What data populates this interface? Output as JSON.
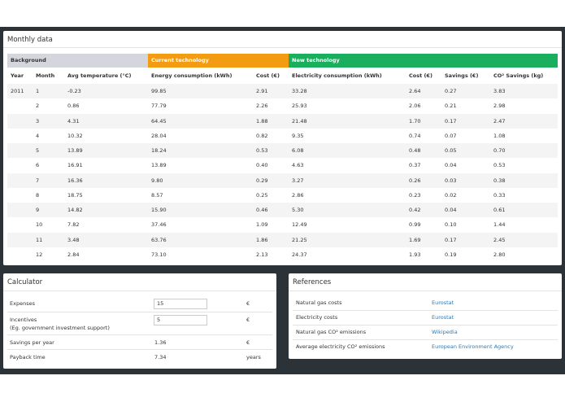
{
  "monthly": {
    "title": "Monthly data",
    "groups": [
      "Background",
      "Current technology",
      "New technology"
    ],
    "columns": [
      "Year",
      "Month",
      "Avg temperature (°C)",
      "Energy consumption (kWh)",
      "Cost (€)",
      "Electricity consumption (kWh)",
      "Cost (€)",
      "Savings (€)",
      "CO² Savings (kg)"
    ],
    "rows": [
      [
        "2011",
        "1",
        "-0.23",
        "99.85",
        "2.91",
        "33.28",
        "2.64",
        "0.27",
        "3.83"
      ],
      [
        null,
        "2",
        "0.86",
        "77.79",
        "2.26",
        "25.93",
        "2.06",
        "0.21",
        "2.98"
      ],
      [
        null,
        "3",
        "4.31",
        "64.45",
        "1.88",
        "21.48",
        "1.70",
        "0.17",
        "2.47"
      ],
      [
        null,
        "4",
        "10.32",
        "28.04",
        "0.82",
        "9.35",
        "0.74",
        "0.07",
        "1.08"
      ],
      [
        null,
        "5",
        "13.89",
        "18.24",
        "0.53",
        "6.08",
        "0.48",
        "0.05",
        "0.70"
      ],
      [
        null,
        "6",
        "16.91",
        "13.89",
        "0.40",
        "4.63",
        "0.37",
        "0.04",
        "0.53"
      ],
      [
        null,
        "7",
        "16.36",
        "9.80",
        "0.29",
        "3.27",
        "0.26",
        "0.03",
        "0.38"
      ],
      [
        null,
        "8",
        "18.75",
        "8.57",
        "0.25",
        "2.86",
        "0.23",
        "0.02",
        "0.33"
      ],
      [
        null,
        "9",
        "14.82",
        "15.90",
        "0.46",
        "5.30",
        "0.42",
        "0.04",
        "0.61"
      ],
      [
        null,
        "10",
        "7.82",
        "37.46",
        "1.09",
        "12.49",
        "0.99",
        "0.10",
        "1.44"
      ],
      [
        null,
        "11",
        "3.48",
        "63.76",
        "1.86",
        "21.25",
        "1.69",
        "0.17",
        "2.45"
      ],
      [
        null,
        "12",
        "2.84",
        "73.10",
        "2.13",
        "24.37",
        "1.93",
        "0.19",
        "2.80"
      ]
    ]
  },
  "calculator": {
    "title": "Calculator",
    "rows": [
      {
        "label": "Expenses",
        "input": "15",
        "unit": "€"
      },
      {
        "label": "Incentives",
        "note": "(Eg. government investment support)",
        "input": "5",
        "unit": "€"
      },
      {
        "label": "Savings per year",
        "value": "1.36",
        "unit": "€"
      },
      {
        "label": "Payback time",
        "value": "7.34",
        "unit": "years"
      }
    ]
  },
  "references": {
    "title": "References",
    "rows": [
      {
        "label": "Natural gas costs",
        "link": "Eurostat"
      },
      {
        "label": "Electricity costs",
        "link": "Eurostat"
      },
      {
        "label": "Natural gas CO² emissions",
        "link": "Wikipedia"
      },
      {
        "label": "Average electricity CO² emissions",
        "link": "European Environment Agency"
      }
    ]
  }
}
